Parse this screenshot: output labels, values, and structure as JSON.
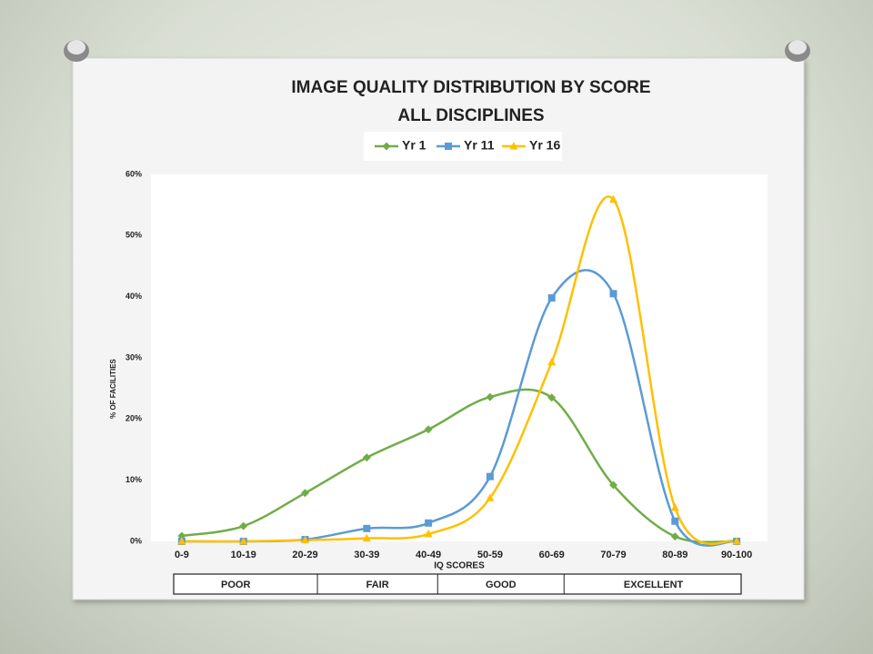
{
  "chart_data": {
    "type": "line",
    "title": "IMAGE QUALITY DISTRIBUTION BY SCORE",
    "subtitle": "ALL DISCIPLINES",
    "x_label": "IQ SCORES",
    "y_label": "% OF FACILITIES",
    "categories": [
      "0-9",
      "10-19",
      "20-29",
      "30-39",
      "40-49",
      "50-59",
      "60-69",
      "70-79",
      "80-89",
      "90-100"
    ],
    "series": [
      {
        "name": "Yr 1",
        "color": "#70ad47",
        "marker": "diamond",
        "values": [
          0.9,
          2.5,
          7.9,
          13.7,
          18.3,
          23.6,
          23.5,
          9.2,
          0.8,
          0
        ]
      },
      {
        "name": "Yr 11",
        "color": "#5b9bd5",
        "marker": "square",
        "values": [
          0,
          0,
          0.3,
          2.1,
          3.0,
          10.6,
          39.8,
          40.5,
          3.3,
          0
        ]
      },
      {
        "name": "Yr 16",
        "color": "#ffc000",
        "marker": "triangle",
        "values": [
          0,
          0,
          0.2,
          0.5,
          1.2,
          7.1,
          29.3,
          55.9,
          5.5,
          0
        ]
      }
    ],
    "ylim": [
      0,
      60
    ],
    "yticks": [
      {
        "value": 0,
        "label": "0%"
      },
      {
        "value": 10,
        "label": "10%"
      },
      {
        "value": 20,
        "label": "20%"
      },
      {
        "value": 30,
        "label": "30%"
      },
      {
        "value": 40,
        "label": "40%"
      },
      {
        "value": 50,
        "label": "50%"
      },
      {
        "value": 60,
        "label": "60%"
      }
    ],
    "smooth": true,
    "legend": "top",
    "score_bands": [
      "POOR",
      "FAIR",
      "GOOD",
      "EXCELLENT"
    ]
  }
}
